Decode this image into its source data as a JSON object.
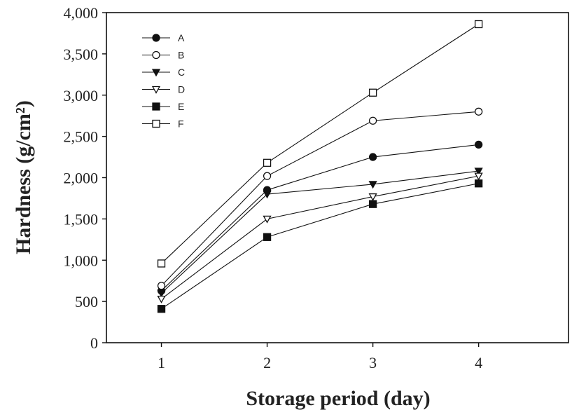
{
  "chart_data": {
    "type": "line",
    "xlabel": "Storage period (day)",
    "ylabel": "Hardness (g/cm²)",
    "x": [
      1,
      2,
      3,
      4
    ],
    "x_tick_labels": [
      "1",
      "2",
      "3",
      "4"
    ],
    "xlim": [
      0.48,
      4.85
    ],
    "ylim": [
      0,
      4000
    ],
    "y_ticks": [
      0,
      500,
      1000,
      1500,
      2000,
      2500,
      3000,
      3500,
      4000
    ],
    "y_tick_labels": [
      "0",
      "500",
      "1,000",
      "1,500",
      "2,000",
      "2,500",
      "3,000",
      "3,500",
      "4,000"
    ],
    "grid": false,
    "legend_position": "top-left",
    "series": [
      {
        "name": "A",
        "marker": "filled-circle",
        "values": [
          630,
          1850,
          2250,
          2400
        ]
      },
      {
        "name": "B",
        "marker": "open-circle",
        "values": [
          690,
          2020,
          2690,
          2800
        ]
      },
      {
        "name": "C",
        "marker": "filled-triangle-down",
        "values": [
          600,
          1800,
          1920,
          2080
        ]
      },
      {
        "name": "D",
        "marker": "open-triangle-down",
        "values": [
          530,
          1500,
          1770,
          2020
        ]
      },
      {
        "name": "E",
        "marker": "filled-square",
        "values": [
          410,
          1280,
          1680,
          1930
        ]
      },
      {
        "name": "F",
        "marker": "open-square",
        "values": [
          960,
          2180,
          3030,
          3860
        ]
      }
    ]
  }
}
